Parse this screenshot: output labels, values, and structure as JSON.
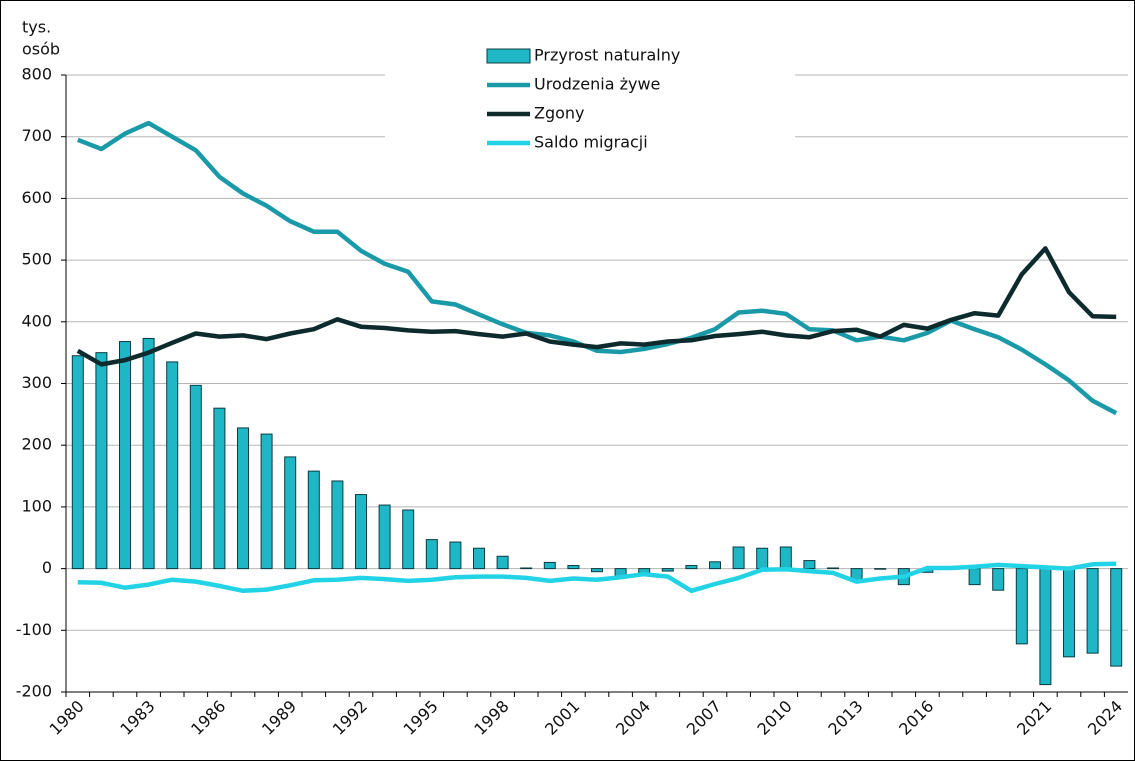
{
  "chart_data": {
    "type": "bar",
    "y_unit_label": [
      "tys.",
      "osób"
    ],
    "categories": [
      "1980",
      null,
      null,
      "1983",
      null,
      null,
      "1986",
      null,
      null,
      "1989",
      null,
      null,
      "1992",
      null,
      null,
      "1995",
      null,
      null,
      "1998",
      null,
      null,
      "2001",
      null,
      null,
      "2004",
      null,
      null,
      "2007",
      null,
      null,
      "2010",
      null,
      null,
      "2013",
      null,
      null,
      "2016",
      null,
      null,
      null,
      null,
      "2021",
      null,
      null,
      "2024"
    ],
    "ylim": [
      -200,
      800
    ],
    "yticks": [
      -200,
      -100,
      0,
      100,
      200,
      300,
      400,
      500,
      600,
      700,
      800
    ],
    "grid": true,
    "legend": "top",
    "series": [
      {
        "name": "Przyrost naturalny",
        "type": "bar",
        "color": "#1fb6c6",
        "values": [
          345,
          350,
          368,
          373,
          335,
          297,
          260,
          228,
          218,
          181,
          158,
          142,
          120,
          103,
          95,
          47,
          43,
          33,
          20,
          1,
          10,
          5,
          -5,
          -14,
          -7,
          -4,
          5,
          11,
          35,
          33,
          35,
          13,
          1,
          -18,
          -1,
          -26,
          -6,
          0,
          -26,
          -35,
          -122,
          -188,
          -143,
          -137,
          -158
        ]
      },
      {
        "name": "Urodzenia żywe",
        "type": "line",
        "color": "#1a9aa8",
        "values": [
          695,
          680,
          705,
          722,
          700,
          678,
          635,
          608,
          588,
          563,
          546,
          546,
          515,
          494,
          481,
          433,
          428,
          412,
          396,
          382,
          378,
          368,
          353,
          351,
          356,
          364,
          374,
          388,
          415,
          418,
          413,
          388,
          386,
          370,
          376,
          370,
          382,
          402,
          388,
          375,
          355,
          331,
          305,
          272,
          252
        ]
      },
      {
        "name": "Zgony",
        "type": "line",
        "color": "#0d2a2c",
        "values": [
          353,
          331,
          338,
          350,
          366,
          381,
          376,
          378,
          372,
          381,
          388,
          404,
          392,
          390,
          386,
          384,
          385,
          380,
          376,
          381,
          368,
          363,
          359,
          365,
          363,
          368,
          370,
          377,
          380,
          384,
          378,
          375,
          385,
          387,
          376,
          395,
          389,
          403,
          414,
          410,
          477,
          519,
          448,
          409,
          408
        ]
      },
      {
        "name": "Saldo migracji",
        "type": "line",
        "color": "#22d3e6",
        "values": [
          -22,
          -23,
          -31,
          -26,
          -18,
          -21,
          -28,
          -36,
          -34,
          -27,
          -19,
          -18,
          -15,
          -17,
          -20,
          -18,
          -14,
          -13,
          -13,
          -15,
          -20,
          -16,
          -18,
          -14,
          -9,
          -13,
          -36,
          -25,
          -15,
          -2,
          -1,
          -4,
          -7,
          -21,
          -16,
          -13,
          1,
          1,
          3,
          6,
          4,
          2,
          0,
          7,
          8
        ]
      }
    ]
  }
}
